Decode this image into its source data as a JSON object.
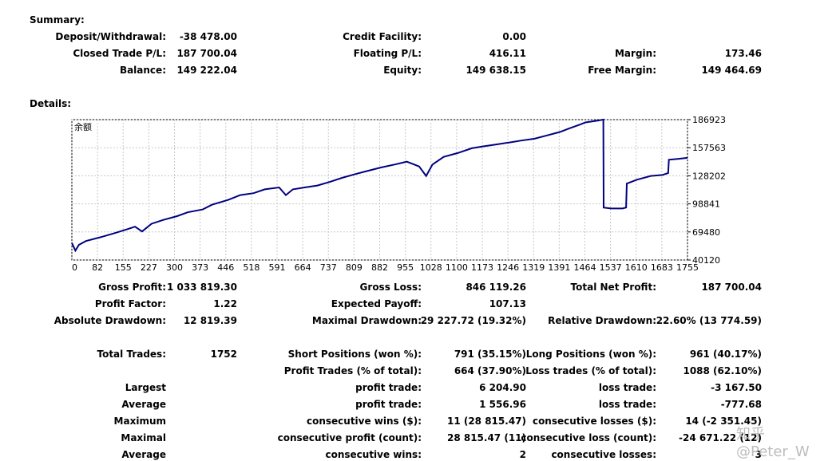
{
  "summary": {
    "title": "Summary:",
    "deposit_label": "Deposit/Withdrawal:",
    "deposit_value": "-38 478.00",
    "credit_label": "Credit Facility:",
    "credit_value": "0.00",
    "closed_label": "Closed Trade P/L:",
    "closed_value": "187 700.04",
    "floating_label": "Floating P/L:",
    "floating_value": "416.11",
    "margin_label": "Margin:",
    "margin_value": "173.46",
    "balance_label": "Balance:",
    "balance_value": "149 222.04",
    "equity_label": "Equity:",
    "equity_value": "149 638.15",
    "free_margin_label": "Free Margin:",
    "free_margin_value": "149 464.69"
  },
  "details_title": "Details:",
  "chart_data": {
    "type": "line",
    "title": "余额",
    "x_ticks": [
      "0",
      "82",
      "155",
      "227",
      "300",
      "373",
      "446",
      "518",
      "591",
      "664",
      "737",
      "809",
      "882",
      "955",
      "1028",
      "1100",
      "1173",
      "1246",
      "1319",
      "1391",
      "1464",
      "1537",
      "1610",
      "1683",
      "1755"
    ],
    "y_ticks": [
      "186923",
      "157563",
      "128202",
      "98841",
      "69480",
      "40120"
    ],
    "ylim": [
      40120,
      186923
    ],
    "xlim": [
      0,
      1755
    ],
    "grid": true,
    "series": [
      {
        "color": "#000080",
        "x": [
          0,
          10,
          20,
          40,
          82,
          120,
          155,
          180,
          200,
          227,
          260,
          300,
          330,
          373,
          400,
          446,
          480,
          518,
          550,
          591,
          610,
          630,
          664,
          700,
          737,
          770,
          809,
          840,
          882,
          920,
          955,
          990,
          1010,
          1028,
          1060,
          1100,
          1140,
          1173,
          1210,
          1246,
          1280,
          1319,
          1350,
          1391,
          1420,
          1450,
          1464,
          1500,
          1515,
          1516,
          1537,
          1570,
          1580,
          1582,
          1610,
          1650,
          1683,
          1700,
          1702,
          1730,
          1755
        ],
        "y": [
          58000,
          50000,
          56000,
          60000,
          64000,
          68000,
          72000,
          75000,
          70000,
          78000,
          82000,
          86000,
          90000,
          93000,
          98000,
          103000,
          108000,
          110000,
          114000,
          116000,
          108000,
          114000,
          116000,
          118000,
          122000,
          126000,
          130000,
          133000,
          137000,
          140000,
          143000,
          138000,
          128000,
          140000,
          148000,
          152000,
          157000,
          159000,
          161000,
          163000,
          165000,
          167000,
          170000,
          174000,
          178000,
          182000,
          184000,
          186000,
          187000,
          95000,
          94000,
          94000,
          95000,
          120000,
          124000,
          128000,
          129000,
          131000,
          145000,
          146000,
          147000
        ]
      }
    ]
  },
  "stats": {
    "gross_profit_label": "Gross Profit:",
    "gross_profit_value": "1 033 819.30",
    "gross_loss_label": "Gross Loss:",
    "gross_loss_value": "846 119.26",
    "total_net_label": "Total Net Profit:",
    "total_net_value": "187 700.04",
    "profit_factor_label": "Profit Factor:",
    "profit_factor_value": "1.22",
    "expected_payoff_label": "Expected Payoff:",
    "expected_payoff_value": "107.13",
    "abs_dd_label": "Absolute Drawdown:",
    "abs_dd_value": "12 819.39",
    "max_dd_label": "Maximal Drawdown:",
    "max_dd_value": "29 227.72 (19.32%)",
    "rel_dd_label": "Relative Drawdown:",
    "rel_dd_value": "22.60% (13 774.59)",
    "total_trades_label": "Total Trades:",
    "total_trades_value": "1752",
    "short_label": "Short Positions (won %):",
    "short_value": "791 (35.15%)",
    "long_label": "Long Positions (won %):",
    "long_value": "961 (40.17%)",
    "profit_trades_label": "Profit Trades (% of total):",
    "profit_trades_value": "664 (37.90%)",
    "loss_trades_label": "Loss trades (% of total):",
    "loss_trades_value": "1088 (62.10%)",
    "largest_label": "Largest",
    "largest_profit_label": "profit trade:",
    "largest_profit_value": "6 204.90",
    "largest_loss_label": "loss trade:",
    "largest_loss_value": "-3 167.50",
    "average_label": "Average",
    "average_profit_label": "profit trade:",
    "average_profit_value": "1 556.96",
    "average_loss_label": "loss trade:",
    "average_loss_value": "-777.68",
    "maximum_label": "Maximum",
    "max_cons_wins_label": "consecutive wins ($):",
    "max_cons_wins_value": "11 (28 815.47)",
    "max_cons_losses_label": "consecutive losses ($):",
    "max_cons_losses_value": "14 (-2 351.45)",
    "maximal_label": "Maximal",
    "maximal_cons_profit_label": "consecutive profit (count):",
    "maximal_cons_profit_value": "28 815.47 (11)",
    "maximal_cons_loss_label": "consecutive loss (count):",
    "maximal_cons_loss_value": "-24 671.22 (12)",
    "average2_label": "Average",
    "avg_cons_wins_label": "consecutive wins:",
    "avg_cons_wins_value": "2",
    "avg_cons_losses_label": "consecutive losses:",
    "avg_cons_losses_value": "3"
  },
  "watermark": "知乎 @Peter_W"
}
